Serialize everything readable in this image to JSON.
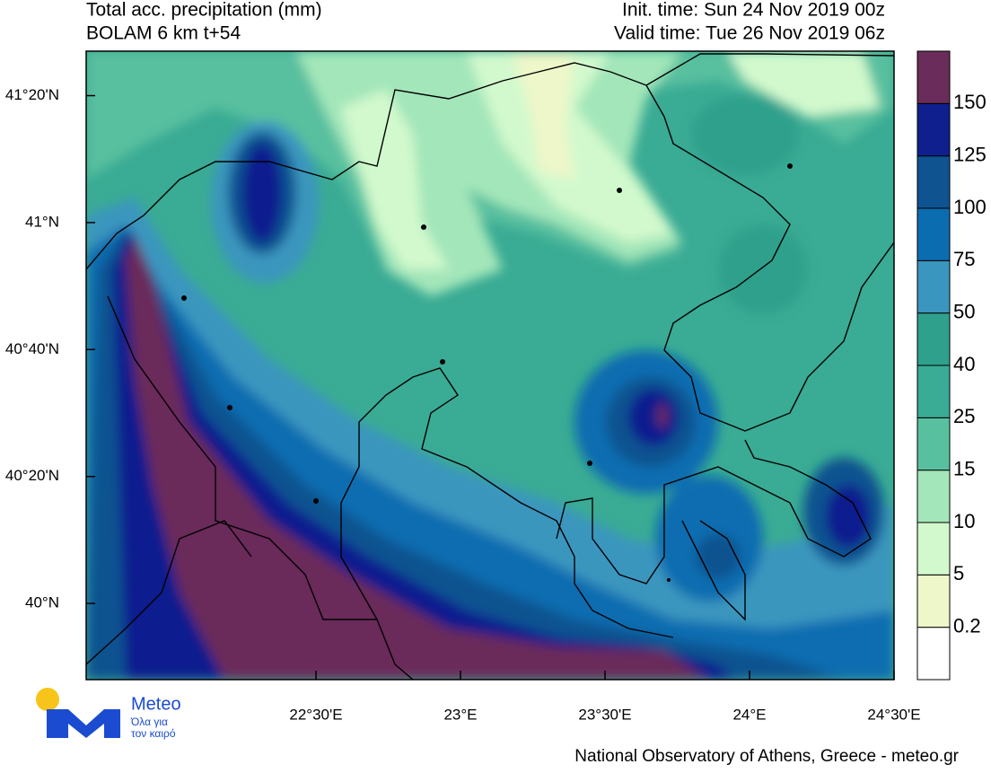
{
  "header": {
    "title": "Total acc. precipitation (mm)",
    "model": "BOLAM 6 km t+54",
    "init_time": "Init. time: Sun 24 Nov 2019 00z",
    "valid_time": "Valid time: Tue 26 Nov 2019 06z"
  },
  "map": {
    "xlim": [
      21.705,
      24.5
    ],
    "ylim": [
      39.8,
      41.45
    ],
    "xticks": [
      {
        "value": 22.5,
        "label": "22°30'E"
      },
      {
        "value": 23,
        "label": "23°E"
      },
      {
        "value": 23.5,
        "label": "23°30'E"
      },
      {
        "value": 24,
        "label": "24°E"
      },
      {
        "value": 24.5,
        "label": "24°30'E"
      }
    ],
    "yticks": [
      {
        "value": 40,
        "label": "40°N"
      },
      {
        "value": 40.3333,
        "label": "40°20'N"
      },
      {
        "value": 40.6667,
        "label": "40°40'N"
      },
      {
        "value": 41,
        "label": "41°N"
      },
      {
        "value": 41.3333,
        "label": "41°20'N"
      }
    ]
  },
  "colorbar": {
    "levels": [
      0.2,
      5,
      10,
      15,
      25,
      40,
      50,
      75,
      100,
      125,
      150
    ],
    "colors": [
      "#ffffff",
      "#eef7c9",
      "#d2f9cd",
      "#a3e6b9",
      "#58c09f",
      "#3aab94",
      "#2fa08c",
      "#3a96be",
      "#0b6db0",
      "#0f5390",
      "#101f8e",
      "#6a2c5a"
    ]
  },
  "logo": {
    "name": "Meteo",
    "tagline_1": "Όλα για",
    "tagline_2": "τον καιρό"
  },
  "footer": "National Observatory of Athens, Greece - meteo.gr"
}
